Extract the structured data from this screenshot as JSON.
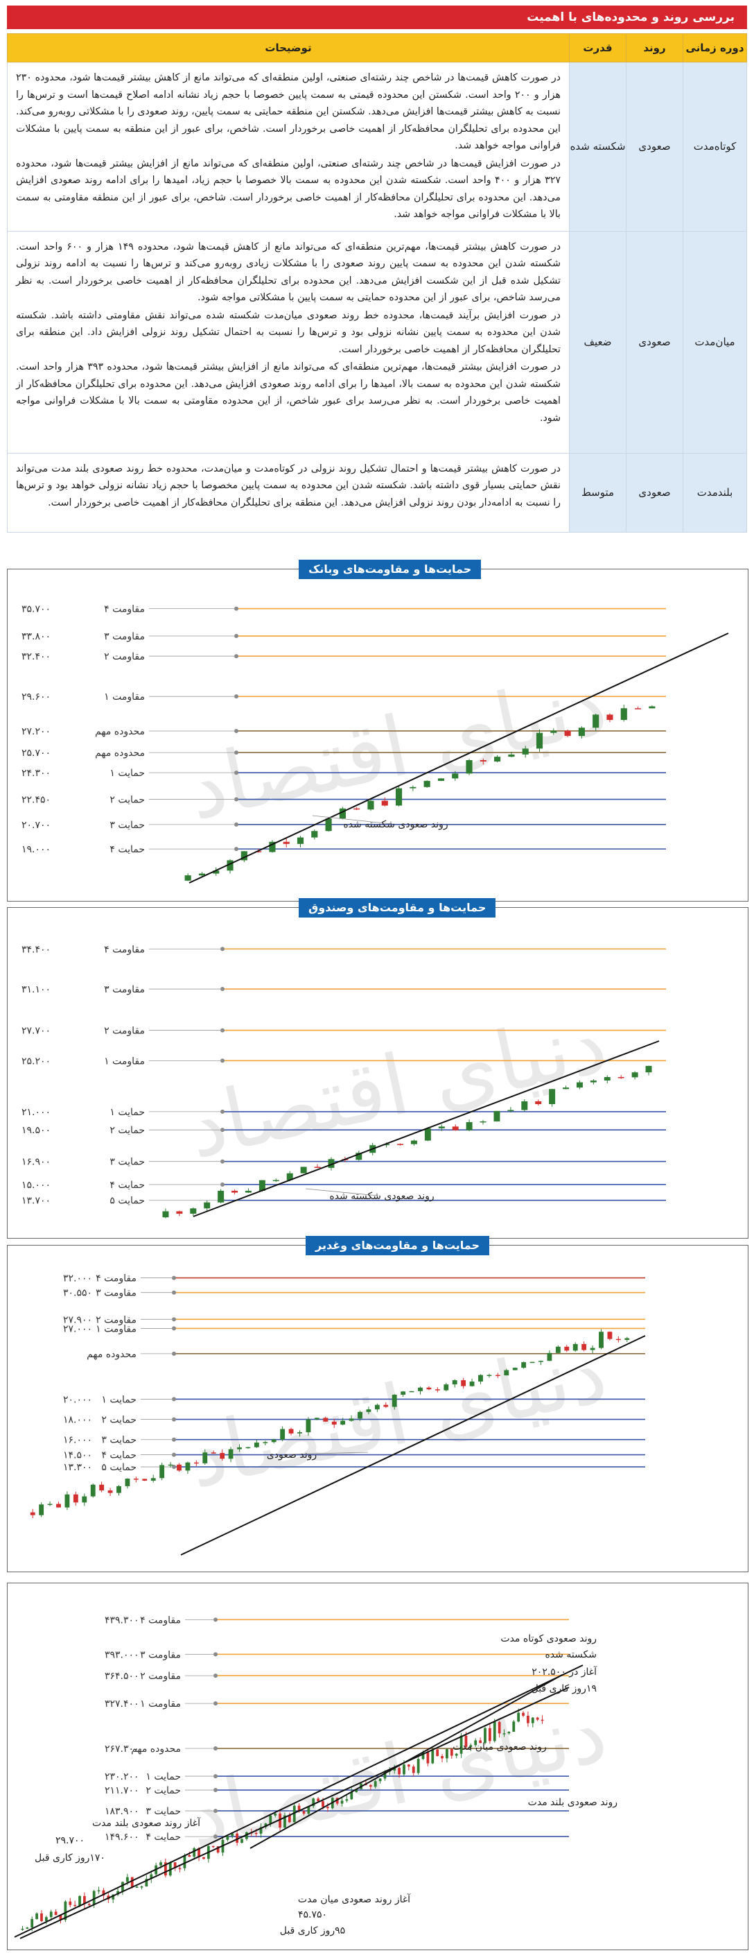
{
  "header": {
    "title": "بررسی روند و محدوده‌های با اهمیت"
  },
  "table": {
    "columns": [
      "دوره زمانی",
      "روند",
      "قدرت",
      "توضیحات"
    ],
    "rows": [
      {
        "period": "کوتاه‌مدت",
        "trend": "صعودی",
        "strength": "شکسته شده",
        "desc": [
          "در صورت کاهش قیمت‌ها در شاخص چند رشته‌ای صنعتی، اولین منطقه‌ای که می‌تواند مانع از کاهش بیشتر قیمت‌ها شود، محدوده ۲۳۰ هزار و ۲۰۰ واحد است. شکستن این محدوده قیمتی به سمت پایین خصوصا با حجم زیاد نشانه ادامه اصلاح قیمت‌ها است و ترس‌ها را نسبت به کاهش بیشتر قیمت‌ها افزایش می‌دهد. شکستن این منطقه حمایتی به سمت پایین، روند صعودی را با مشکلاتی روبه‌رو می‌کند. این محدوده برای تحلیلگران محافظه‌کار از اهمیت خاصی برخوردار است. شاخص، برای عبور از این منطقه به سمت پایین با مشکلات فراوانی مواجه خواهد شد.",
          "در صورت افزایش قیمت‌ها در شاخص چند رشته‌ای صنعتی، اولین منطقه‌ای که می‌تواند مانع از افزایش بیشتر قیمت‌ها شود، محدوده ۳۲۷ هزار و ۴۰۰ واحد است. شکسته شدن این محدوده به سمت بالا خصوصا با حجم زیاد، امیدها را برای ادامه روند صعودی افزایش می‌دهد. این محدوده برای تحلیلگران محافظه‌کار از اهمیت خاصی برخوردار است. شاخص، برای عبور از این منطقه مقاومتی به سمت بالا با مشکلات فراوانی مواجه خواهد شد."
        ]
      },
      {
        "period": "میان‌مدت",
        "trend": "صعودی",
        "strength": "ضعیف",
        "desc": [
          "در صورت کاهش بیشتر قیمت‌ها، مهم‌ترین منطقه‌ای که می‌تواند مانع از کاهش قیمت‌ها شود، محدوده ۱۴۹ هزار و ۶۰۰ واحد است. شکسته شدن این محدوده به سمت پایین روند صعودی را با مشکلات زیادی روبه‌رو می‌کند و ترس‌ها را نسبت به ادامه روند نزولی تشکیل شده قبل از این شکست افزایش می‌دهد. این محدوده برای تحلیلگران محافظه‌کار از اهمیت خاصی برخوردار است. به نظر می‌رسد شاخص، برای عبور از این محدوده حمایتی به سمت پایین با مشکلاتی مواجه شود.",
          "در صورت افزایش برآیند قیمت‌ها، محدوده خط روند صعودی میان‌مدت شکسته شده می‌تواند نقش مقاومتی داشته باشد. شکسته شدن این محدوده به سمت پایین نشانه نزولی بود و ترس‌ها را نسبت به احتمال تشکیل روند نزولی افزایش داد. این منطقه برای تحلیلگران محافظه‌کار از اهمیت خاصی برخوردار است.",
          "در صورت افزایش بیشتر قیمت‌ها، مهم‌ترین منطقه‌ای که می‌تواند مانع از افزایش بیشتر قیمت‌ها شود، محدوده ۳۹۳ هزار واحد است. شکسته شدن این محدوده به سمت بالا، امیدها را برای ادامه روند صعودی افزایش می‌دهد. این محدوده برای تحلیلگران محافظه‌کار از اهمیت خاصی برخوردار است. به نظر می‌رسد برای عبور شاخص، از این محدوده مقاومتی به سمت بالا با مشکلات فراوانی مواجه شود."
        ]
      },
      {
        "period": "بلندمدت",
        "trend": "صعودی",
        "strength": "متوسط",
        "desc": [
          "در صورت کاهش بیشتر قیمت‌ها و احتمال تشکیل روند نزولی در کوتاه‌مدت و میان‌مدت، محدوده خط روند صعودی بلند مدت می‌تواند نقش حمایتی بسیار قوی داشته باشد. شکسته شدن این محدوده به سمت پایین مخصوصا با حجم زیاد نشانه نزولی خواهد بود و ترس‌ها را نسبت به ادامه‌دار بودن روند نزولی افزایش می‌دهد. این منطقه برای تحلیلگران محافظه‌کار از اهمیت خاصی برخوردار است."
        ]
      }
    ]
  },
  "charts": [
    {
      "title": "حمایت‌ها و مقاومت‌های وبانک",
      "levels": [
        {
          "label": "مقاومت ۴",
          "value": "۳۵.۷۰۰",
          "color": "#f2a33a",
          "v": 35700
        },
        {
          "label": "مقاومت ۳",
          "value": "۳۳.۸۰۰",
          "color": "#f2a33a",
          "v": 33800
        },
        {
          "label": "مقاومت ۲",
          "value": "۳۲.۴۰۰",
          "color": "#f2a33a",
          "v": 32400
        },
        {
          "label": "مقاومت ۱",
          "value": "۲۹.۶۰۰",
          "color": "#f2a33a",
          "v": 29600
        },
        {
          "label": "محدوده مهم",
          "value": "۲۷.۲۰۰",
          "color": "#8c6b3c",
          "v": 27200
        },
        {
          "label": "محدوده مهم",
          "value": "۲۵.۷۰۰",
          "color": "#8c6b3c",
          "v": 25700
        },
        {
          "label": "حمایت ۱",
          "value": "۲۴.۳۰۰",
          "color": "#3a55a8",
          "v": 24300
        },
        {
          "label": "حمایت ۲",
          "value": "۲۲.۴۵۰",
          "color": "#3a55a8",
          "v": 22450
        },
        {
          "label": "حمایت ۳",
          "value": "۲۰.۷۰۰",
          "color": "#3a55a8",
          "v": 20700
        },
        {
          "label": "حمایت ۴",
          "value": "۱۹.۰۰۰",
          "color": "#3a55a8",
          "v": 19000
        }
      ],
      "annotations": [
        "روند صعودی شکسته شده"
      ]
    },
    {
      "title": "حمایت‌ها و مقاومت‌های وصندوق",
      "levels": [
        {
          "label": "مقاومت ۴",
          "value": "۳۴.۴۰۰",
          "color": "#f2a33a",
          "v": 34400
        },
        {
          "label": "مقاومت ۳",
          "value": "۳۱.۱۰۰",
          "color": "#f2a33a",
          "v": 31100
        },
        {
          "label": "مقاومت ۲",
          "value": "۲۷.۷۰۰",
          "color": "#f2a33a",
          "v": 27700
        },
        {
          "label": "مقاومت ۱",
          "value": "۲۵.۲۰۰",
          "color": "#f2a33a",
          "v": 25200
        },
        {
          "label": "حمایت ۱",
          "value": "۲۱.۰۰۰",
          "color": "#3a55a8",
          "v": 21000
        },
        {
          "label": "حمایت ۲",
          "value": "۱۹.۵۰۰",
          "color": "#3a55a8",
          "v": 19500
        },
        {
          "label": "حمایت ۳",
          "value": "۱۶.۹۰۰",
          "color": "#3a55a8",
          "v": 16900
        },
        {
          "label": "حمایت ۴",
          "value": "۱۵.۰۰۰",
          "color": "#3a55a8",
          "v": 15000
        },
        {
          "label": "حمایت ۵",
          "value": "۱۳.۷۰۰",
          "color": "#3a55a8",
          "v": 13700
        }
      ],
      "annotations": [
        "روند صعودی شکسته شده"
      ]
    },
    {
      "title": "حمایت‌ها و مقاومت‌های وغدیر",
      "levels": [
        {
          "label": "مقاومت ۴",
          "value": "۳۲.۰۰۰",
          "color": "#c0392b",
          "v": 32000
        },
        {
          "label": "مقاومت ۳",
          "value": "۳۰.۵۵۰",
          "color": "#f2a33a",
          "v": 30550
        },
        {
          "label": "مقاومت ۲",
          "value": "۲۷.۹۰۰",
          "color": "#f2a33a",
          "v": 27900
        },
        {
          "label": "مقاومت ۱",
          "value": "۲۷.۰۰۰",
          "color": "#f2a33a",
          "v": 27000
        },
        {
          "label": "محدوده مهم",
          "value": "",
          "color": "#8c6b3c",
          "v": 24500
        },
        {
          "label": "حمایت ۱",
          "value": "۲۰.۰۰۰",
          "color": "#3a55a8",
          "v": 20000
        },
        {
          "label": "حمایت ۲",
          "value": "۱۸.۰۰۰",
          "color": "#3a55a8",
          "v": 18000
        },
        {
          "label": "حمایت ۳",
          "value": "۱۶.۰۰۰",
          "color": "#3a55a8",
          "v": 16000
        },
        {
          "label": "حمایت ۴",
          "value": "۱۴.۵۰۰",
          "color": "#3a55a8",
          "v": 14500
        },
        {
          "label": "حمایت ۵",
          "value": "۱۳.۳۰۰",
          "color": "#3a55a8",
          "v": 13300
        }
      ],
      "annotations": [
        "روند صعودی"
      ]
    },
    {
      "title": "",
      "levels": [
        {
          "label": "مقاومت ۴",
          "value": "۴۳۹.۳۰۰",
          "color": "#f2a33a",
          "v": 439300
        },
        {
          "label": "مقاومت ۳",
          "value": "۳۹۳.۰۰۰",
          "color": "#f2a33a",
          "v": 393000
        },
        {
          "label": "مقاومت ۲",
          "value": "۳۶۴.۵۰۰",
          "color": "#f2a33a",
          "v": 364500
        },
        {
          "label": "مقاومت ۱",
          "value": "۳۲۷.۴۰۰",
          "color": "#f2a33a",
          "v": 327400
        },
        {
          "label": "محدوده مهم",
          "value": "۲۶۷.۳۰۰",
          "color": "#8c6b3c",
          "v": 267300
        },
        {
          "label": "حمایت ۱",
          "value": "۲۳۰.۲۰۰",
          "color": "#3a55a8",
          "v": 230200
        },
        {
          "label": "حمایت ۲",
          "value": "۲۱۱.۷۰۰",
          "color": "#3a55a8",
          "v": 211700
        },
        {
          "label": "حمایت ۳",
          "value": "۱۸۳.۹۰۰",
          "color": "#3a55a8",
          "v": 183900
        },
        {
          "label": "حمایت ۴",
          "value": "۱۴۹.۶۰۰",
          "color": "#3a55a8",
          "v": 149600
        }
      ],
      "annotations": [
        "روند صعودی کوتاه مدت",
        "شکسته شده",
        "آغاز در ۲۰۲.۵۰۰",
        "۱۹روز کاری قبل",
        "روند صعودی میان مدت",
        "روند صعودی بلند مدت",
        "آغاز روند صعودی بلند مدت",
        "۲۹.۷۰۰",
        "۱۷۰روز کاری قبل",
        "آغاز روند صعودی میان مدت",
        "۴۵.۷۵۰",
        "۹۵روز کاری قبل"
      ]
    }
  ],
  "watermark": "دنیای اقتصاد",
  "colors": {
    "header_red": "#d7262e",
    "table_yellow": "#f7c21c",
    "label_blue": "#dbe8f6",
    "title_blue": "#1566b0",
    "bull": "#2e7d32",
    "bear": "#d32f2f"
  }
}
